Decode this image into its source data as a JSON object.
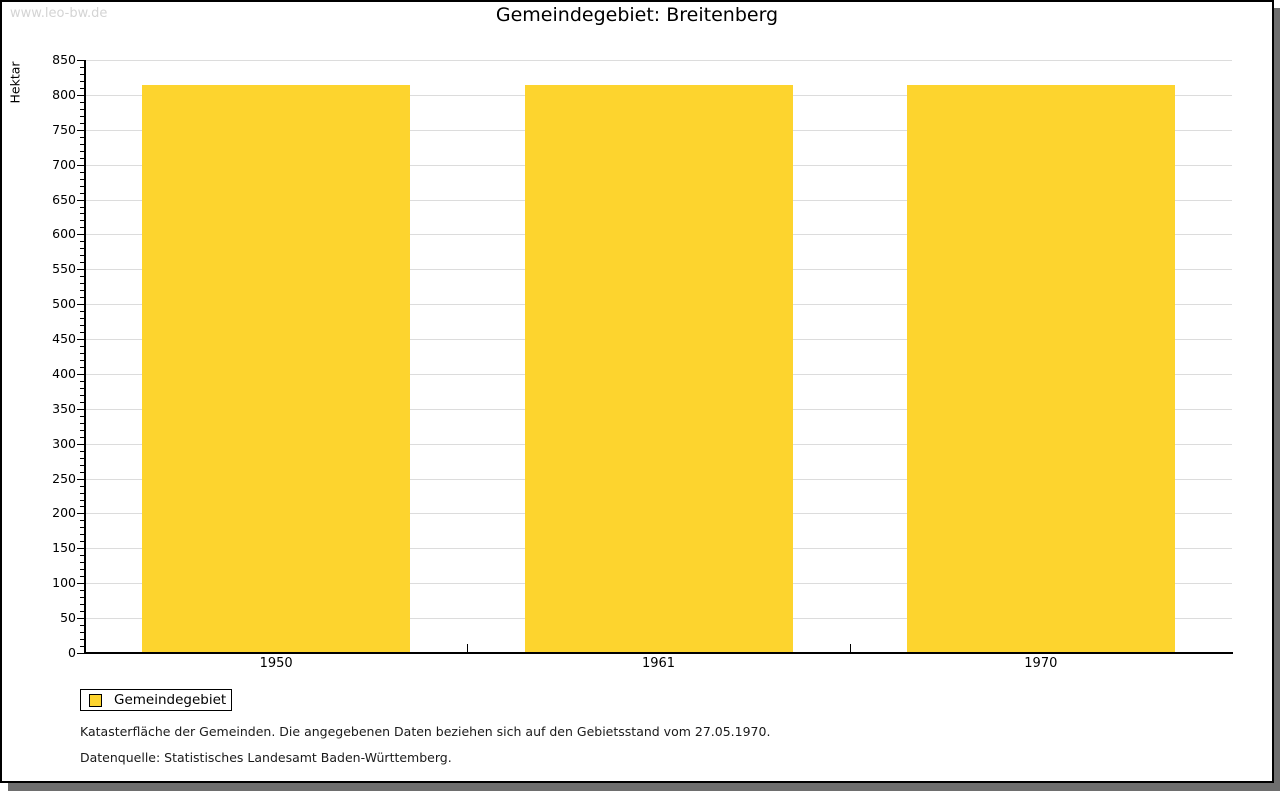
{
  "watermark": "www.leo-bw.de",
  "title": "Gemeindegebiet: Breitenberg",
  "chart_data": {
    "type": "bar",
    "title": "Gemeindegebiet: Breitenberg",
    "categories": [
      "1950",
      "1961",
      "1970"
    ],
    "series": [
      {
        "name": "Gemeindegebiet",
        "values": [
          814,
          814,
          814
        ]
      }
    ],
    "xlabel": "",
    "ylabel": "Hektar",
    "ylim": [
      0,
      850
    ],
    "ytick_step": 50,
    "minor_tick_step": 10,
    "grid": true,
    "legend_position": "bottom-left",
    "bar_color": "#FDD42E",
    "gridline_color": "#DCDCDC",
    "axis_color": "#000000"
  },
  "legend": {
    "items": [
      {
        "label": "Gemeindegebiet",
        "color": "#FDD42E"
      }
    ]
  },
  "footer": {
    "line1": "Katasterfläche der Gemeinden. Die angegebenen Daten beziehen sich auf den Gebietsstand vom 27.05.1970.",
    "line2": "Datenquelle: Statistisches Landesamt Baden-Württemberg."
  },
  "colors": {
    "page_background": "#FFFFFF",
    "frame_border": "#000000",
    "frame_shadow": "#6E6E6E",
    "watermark": "#D4D4D4"
  }
}
